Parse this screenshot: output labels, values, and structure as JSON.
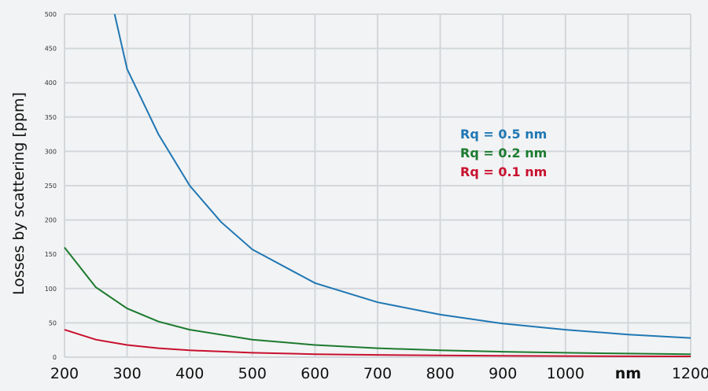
{
  "chart_data": {
    "type": "line",
    "xlabel": "",
    "x_unit_label": "nm",
    "ylabel": "Losses by scattering [ppm]",
    "xlim": [
      200,
      1200
    ],
    "ylim": [
      0,
      500
    ],
    "x_ticks": [
      200,
      300,
      400,
      500,
      600,
      700,
      800,
      900,
      1000,
      1200
    ],
    "y_ticks": [
      0,
      50,
      100,
      150,
      200,
      250,
      300,
      350,
      400,
      450,
      500
    ],
    "grid": true,
    "legend_position": "center-right",
    "series": [
      {
        "name": "Rq = 0.5 nm",
        "color": "#1f77b4",
        "x": [
          280,
          300,
          350,
          400,
          450,
          500,
          600,
          700,
          800,
          900,
          1000,
          1100,
          1200
        ],
        "values": [
          500,
          420,
          325,
          250,
          197,
          157,
          108,
          80,
          62,
          49,
          40,
          33,
          28
        ]
      },
      {
        "name": "Rq = 0.2 nm",
        "color": "#1b7a2e",
        "x": [
          200,
          250,
          300,
          350,
          400,
          500,
          600,
          700,
          800,
          900,
          1000,
          1100,
          1200
        ],
        "values": [
          160,
          102,
          71,
          52,
          40,
          25.6,
          17.8,
          13.1,
          10,
          7.9,
          6.4,
          5.3,
          4.4
        ]
      },
      {
        "name": "Rq = 0.1 nm",
        "color": "#c8102e",
        "x": [
          200,
          250,
          300,
          350,
          400,
          500,
          600,
          700,
          800,
          900,
          1000,
          1100,
          1200
        ],
        "values": [
          40,
          25.6,
          17.8,
          13.1,
          10,
          6.4,
          4.4,
          3.3,
          2.5,
          2,
          1.6,
          1.3,
          1.1
        ]
      }
    ]
  }
}
